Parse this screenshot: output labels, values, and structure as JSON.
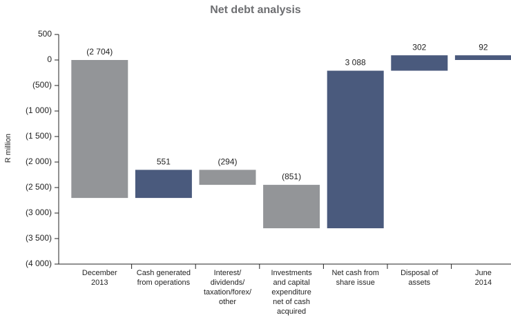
{
  "chart_data": {
    "type": "waterfall",
    "title": "Net debt analysis",
    "y_label": "R million",
    "categories": [
      [
        "December",
        "2013"
      ],
      [
        "Cash generated",
        "from operations"
      ],
      [
        "Interest/",
        "dividends/",
        "taxation/forex/",
        "other"
      ],
      [
        "Investments",
        "and capital",
        "expenditure",
        "net of cash",
        "acquired"
      ],
      [
        "Net cash from",
        "share issue"
      ],
      [
        "Disposal of",
        "assets"
      ],
      [
        "June",
        "2014"
      ]
    ],
    "values": [
      -2704,
      551,
      -294,
      -851,
      3088,
      302,
      92
    ],
    "value_labels": [
      "(2 704)",
      "551",
      "(294)",
      "(851)",
      "3 088",
      "302",
      "92"
    ],
    "measure": [
      "total",
      "relative",
      "relative",
      "relative",
      "relative",
      "relative",
      "total"
    ],
    "colors": [
      "#939598",
      "#4a5a7d",
      "#939598",
      "#939598",
      "#4a5a7d",
      "#4a5a7d",
      "#4a5a7d"
    ],
    "ylim": [
      -4000,
      500
    ],
    "yticks": [
      500,
      0,
      {
        "value": -500,
        "label": "(500)"
      },
      {
        "value": -1000,
        "label": "(1 000)"
      },
      {
        "value": -1500,
        "label": "(1 500)"
      },
      {
        "value": -2000,
        "label": "(2 000)"
      },
      {
        "value": -2500,
        "label": "(2 500)"
      },
      {
        "value": -3000,
        "label": "(3 000)"
      },
      {
        "value": -3500,
        "label": "(3 500)"
      },
      {
        "value": -4000,
        "label": "(4 000)"
      }
    ]
  }
}
